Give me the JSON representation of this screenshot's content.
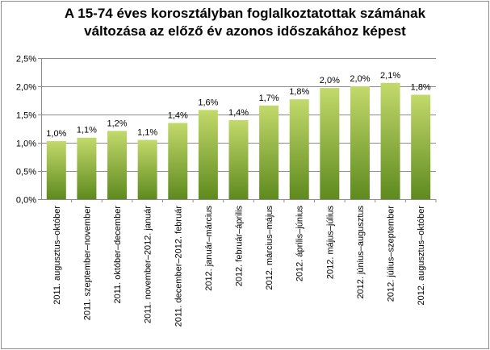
{
  "chart_data": {
    "type": "bar",
    "title_lines": [
      "A 15-74 éves korosztályban foglalkoztatottak számának",
      "változása az előző év azonos időszakához képest"
    ],
    "categories": [
      "2011. augusztus–október",
      "2011. szeptember–november",
      "2011. október–december",
      "2011. november–2012. január",
      "2011. december–2012. február",
      "2012. január–március",
      "2012. február–április",
      "2012. március–május",
      "2012. április–június",
      "2012. május–július",
      "2012. június–augusztus",
      "2012. július–szeptember",
      "2012. augusztus–október"
    ],
    "values": [
      1.03,
      1.09,
      1.21,
      1.05,
      1.35,
      1.58,
      1.4,
      1.66,
      1.77,
      1.97,
      2.0,
      2.06,
      1.85
    ],
    "data_labels": [
      "1,0%",
      "1,1%",
      "1,2%",
      "1,1%",
      "1,4%",
      "1,6%",
      "1,4%",
      "1,7%",
      "1,8%",
      "2,0%",
      "2,0%",
      "2,1%",
      "1,8%"
    ],
    "ylim": [
      0,
      2.5
    ],
    "yticks": [
      0,
      0.5,
      1.0,
      1.5,
      2.0,
      2.5
    ],
    "ytick_labels": [
      "0,0%",
      "0,5%",
      "1,0%",
      "1,5%",
      "2,0%",
      "2,5%"
    ],
    "grid": true,
    "legend": "none",
    "xlabel": "",
    "ylabel": "",
    "bar_color_top": "#c3d96b",
    "bar_color_bottom": "#5e8a1e"
  }
}
